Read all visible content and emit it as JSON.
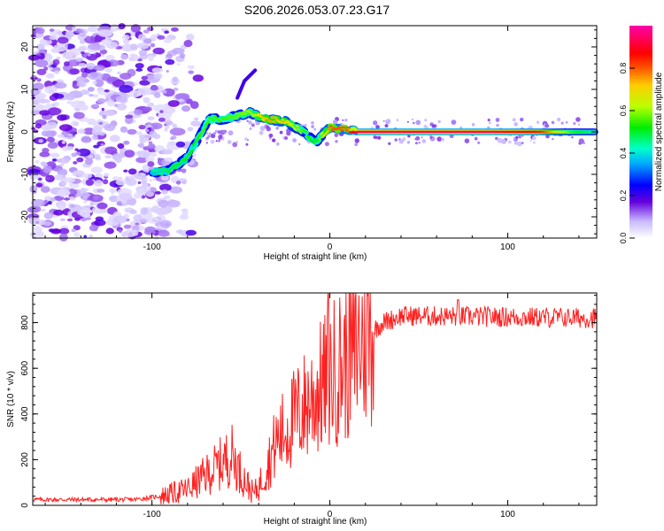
{
  "title": "S206.2026.053.07.23.G17",
  "colors": {
    "snr_line": "#ff2020",
    "background": "#ffffff",
    "axis": "#000000"
  },
  "chart_data": [
    {
      "type": "heatmap",
      "title": "S206.2026.053.07.23.G17",
      "xlabel": "Height of straight line (km)",
      "ylabel": "Frequency (Hz)",
      "xlim": [
        -167,
        150
      ],
      "ylim": [
        -25,
        25
      ],
      "xticks": [
        {
          "v": -100,
          "label": "-100"
        },
        {
          "v": 0,
          "label": "0"
        },
        {
          "v": 100,
          "label": "100"
        }
      ],
      "yticks": [
        {
          "v": -20,
          "label": "-20"
        },
        {
          "v": -10,
          "label": "-10"
        },
        {
          "v": 0,
          "label": "0"
        },
        {
          "v": 10,
          "label": "10"
        },
        {
          "v": 20,
          "label": "20"
        }
      ],
      "ridge": [
        {
          "x": -100,
          "y": -9.5,
          "a": 0.45
        },
        {
          "x": -90,
          "y": -9,
          "a": 0.5
        },
        {
          "x": -80,
          "y": -6,
          "a": 0.5
        },
        {
          "x": -72,
          "y": 0,
          "a": 0.55
        },
        {
          "x": -68,
          "y": 3,
          "a": 0.55
        },
        {
          "x": -60,
          "y": 3,
          "a": 0.55
        },
        {
          "x": -45,
          "y": 4.5,
          "a": 0.6
        },
        {
          "x": -35,
          "y": 3,
          "a": 0.75
        },
        {
          "x": -25,
          "y": 2.5,
          "a": 0.7
        },
        {
          "x": -15,
          "y": 0,
          "a": 0.55
        },
        {
          "x": -8,
          "y": -2.5,
          "a": 0.5
        },
        {
          "x": 0,
          "y": 1,
          "a": 0.8
        },
        {
          "x": 10,
          "y": 0.5,
          "a": 0.8
        },
        {
          "x": 15,
          "y": 0,
          "a": 0.95
        },
        {
          "x": 90,
          "y": 0,
          "a": 0.95
        },
        {
          "x": 118,
          "y": 0,
          "a": 0.85
        },
        {
          "x": 135,
          "y": 0,
          "a": 0.55
        },
        {
          "x": 149,
          "y": 0,
          "a": 0.45
        }
      ],
      "spike": [
        {
          "x": -52,
          "y": 8
        },
        {
          "x": -48,
          "y": 12
        },
        {
          "x": -42,
          "y": 14.5
        }
      ],
      "colorbar": {
        "label": "Normalized spectral amplitude",
        "range": [
          0,
          1
        ],
        "ticks": [
          {
            "v": 0.0,
            "label": "0.0"
          },
          {
            "v": 0.2,
            "label": "0.2"
          },
          {
            "v": 0.4,
            "label": "0.4"
          },
          {
            "v": 0.6,
            "label": "0.6"
          },
          {
            "v": 0.8,
            "label": "0.8"
          }
        ]
      }
    },
    {
      "type": "line",
      "xlabel": "Height of straight line (km)",
      "ylabel": "SNR (10 * v/v)",
      "xlim": [
        -167,
        150
      ],
      "ylim": [
        0,
        930
      ],
      "xticks": [
        {
          "v": -100,
          "label": "-100"
        },
        {
          "v": 0,
          "label": "0"
        },
        {
          "v": 100,
          "label": "100"
        }
      ],
      "yticks": [
        {
          "v": 0,
          "label": "0"
        },
        {
          "v": 200,
          "label": "200"
        },
        {
          "v": 400,
          "label": "400"
        },
        {
          "v": 600,
          "label": "600"
        },
        {
          "v": 800,
          "label": "800"
        }
      ],
      "series": [
        {
          "name": "SNR",
          "envelope": [
            {
              "x": -167,
              "y": 25
            },
            {
              "x": -110,
              "y": 25
            },
            {
              "x": -95,
              "y": 40
            },
            {
              "x": -80,
              "y": 70
            },
            {
              "x": -70,
              "y": 130
            },
            {
              "x": -60,
              "y": 190
            },
            {
              "x": -55,
              "y": 220
            },
            {
              "x": -50,
              "y": 140
            },
            {
              "x": -43,
              "y": 50
            },
            {
              "x": -40,
              "y": 80
            },
            {
              "x": -30,
              "y": 280
            },
            {
              "x": -20,
              "y": 380
            },
            {
              "x": -10,
              "y": 470
            },
            {
              "x": 0,
              "y": 560
            },
            {
              "x": 10,
              "y": 650
            },
            {
              "x": 20,
              "y": 740
            },
            {
              "x": 30,
              "y": 800
            },
            {
              "x": 40,
              "y": 830
            },
            {
              "x": 150,
              "y": 820
            }
          ],
          "peaks": [
            {
              "x": -1,
              "y": 925
            },
            {
              "x": 72,
              "y": 900
            }
          ]
        }
      ]
    }
  ]
}
